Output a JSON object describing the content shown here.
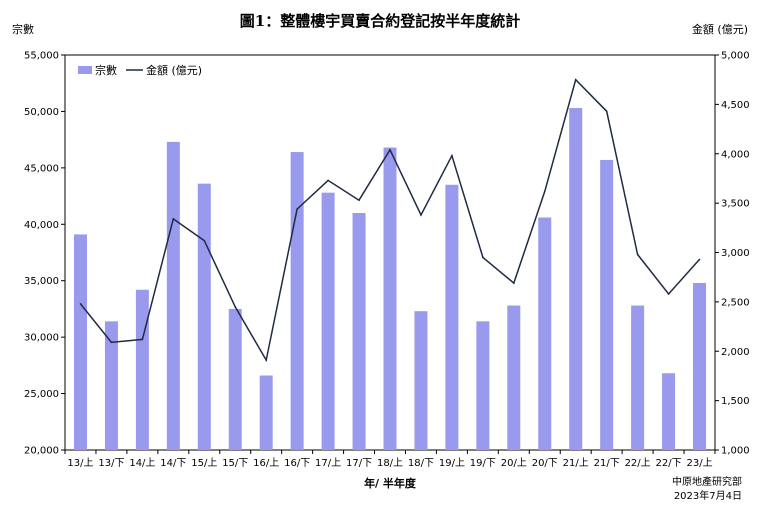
{
  "chart_data": {
    "type": "bar",
    "title": "圖1：整體樓宇買賣合約登記按半年度統計",
    "ylabel_left": "宗數",
    "ylabel_right": "金額 (億元)",
    "xlabel": "年/ 半年度",
    "categories": [
      "13/上",
      "13/下",
      "14/上",
      "14/下",
      "15/上",
      "15/下",
      "16/上",
      "16/下",
      "17/上",
      "17/下",
      "18/上",
      "18/下",
      "19/上",
      "19/下",
      "20/上",
      "20/下",
      "21/上",
      "21/下",
      "22/上",
      "22/下",
      "23/上"
    ],
    "series": [
      {
        "name": "宗數",
        "kind": "bar",
        "axis": "left",
        "values": [
          39100,
          31400,
          34200,
          47300,
          43600,
          32500,
          26600,
          46400,
          42800,
          41000,
          46800,
          32300,
          43500,
          31400,
          32800,
          40600,
          50300,
          45700,
          32800,
          26800,
          34800
        ]
      },
      {
        "name": "金額 (億元)",
        "kind": "line",
        "axis": "right",
        "values": [
          2480,
          2090,
          2120,
          3340,
          3120,
          2450,
          1910,
          3440,
          3730,
          3530,
          4040,
          3380,
          3980,
          2950,
          2690,
          3620,
          4750,
          4430,
          2980,
          2580,
          2930
        ]
      }
    ],
    "ylim_left": [
      20000,
      55000
    ],
    "yticks_left": [
      20000,
      25000,
      30000,
      35000,
      40000,
      45000,
      50000,
      55000
    ],
    "ytick_labels_left": [
      "20,000",
      "25,000",
      "30,000",
      "35,000",
      "40,000",
      "45,000",
      "50,000",
      "55,000"
    ],
    "ylim_right": [
      1000,
      5000
    ],
    "yticks_right": [
      1000,
      1500,
      2000,
      2500,
      3000,
      3500,
      4000,
      4500,
      5000
    ],
    "ytick_labels_right": [
      "1,000",
      "1,500",
      "2,000",
      "2,500",
      "3,000",
      "3,500",
      "4,000",
      "4,500",
      "5,000"
    ],
    "grid": false,
    "legend_position": "top-left",
    "colors": {
      "bar": "#9999ee",
      "line": "#1f2a44"
    }
  },
  "source": {
    "org": "中原地產研究部",
    "date": "2023年7月4日"
  }
}
